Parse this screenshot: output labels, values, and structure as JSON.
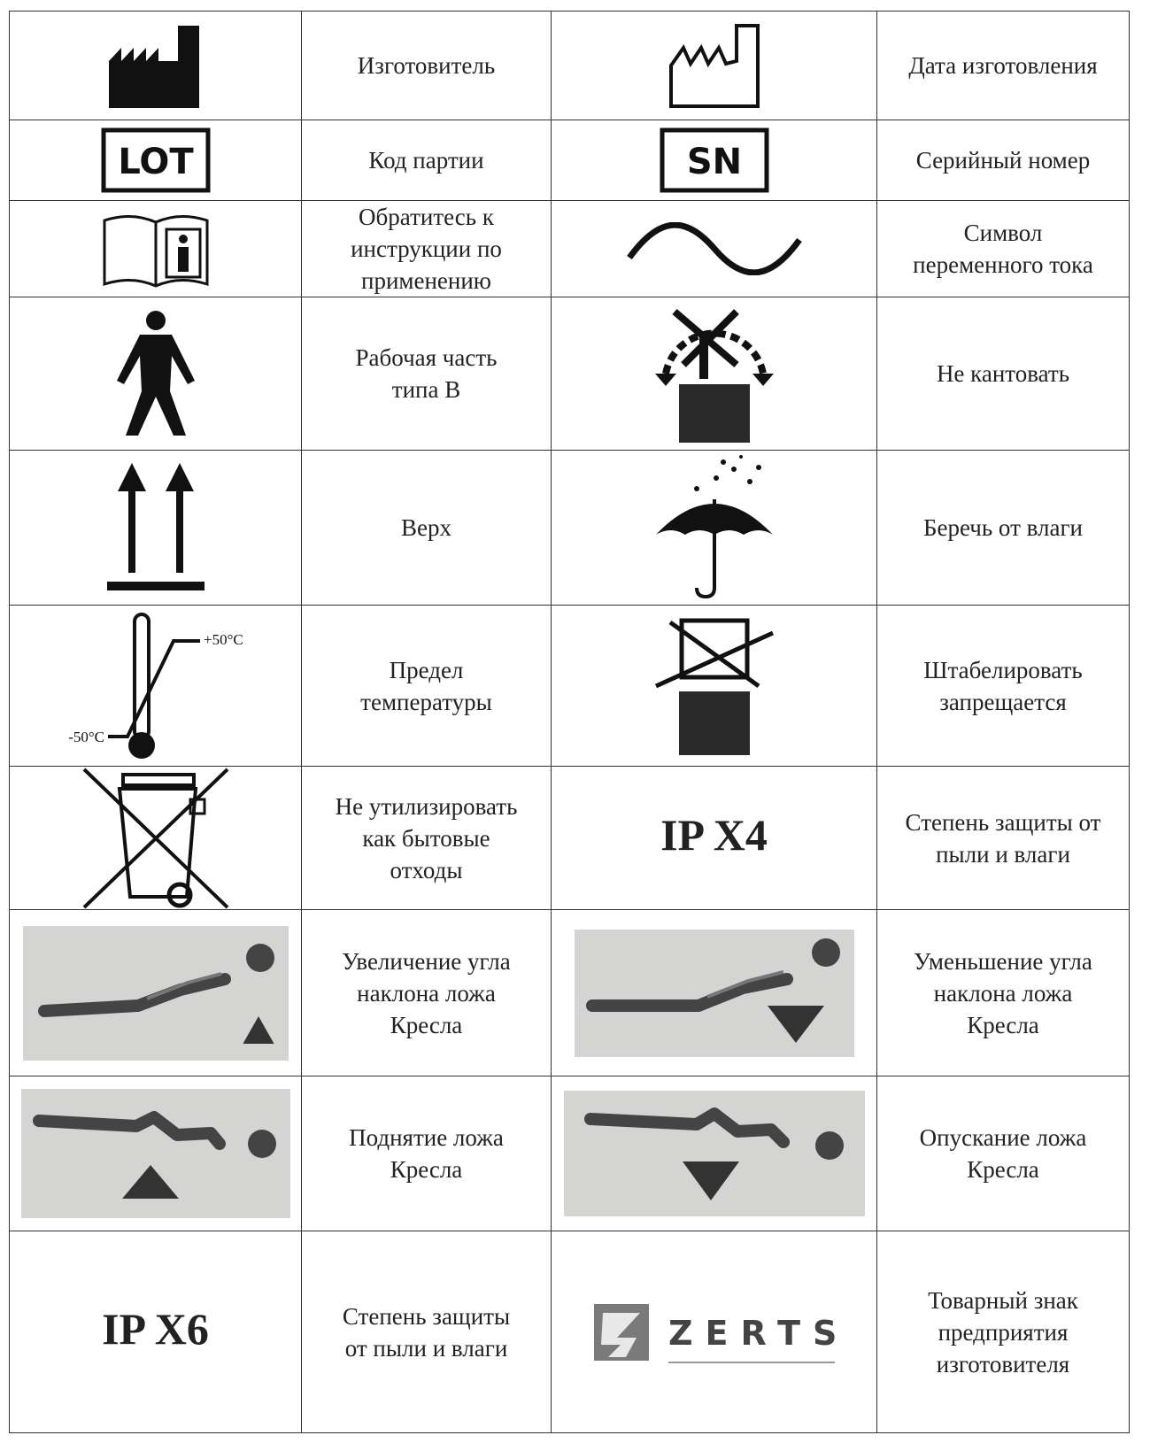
{
  "table": {
    "rows": [
      {
        "left": [
          "Изготовитель"
        ],
        "right": [
          "Дата изготовления"
        ]
      },
      {
        "left": [
          "Код партии"
        ],
        "right": [
          "Серийный номер"
        ]
      },
      {
        "left": [
          "Обратитесь к",
          "инструкции по",
          "применению"
        ],
        "right": [
          "Символ",
          "переменного тока"
        ]
      },
      {
        "left": [
          "Рабочая часть",
          "типа В"
        ],
        "right": [
          "Не кантовать"
        ]
      },
      {
        "left": [
          "Верх"
        ],
        "right": [
          "Беречь от влаги"
        ]
      },
      {
        "left": [
          "Предел",
          "температуры"
        ],
        "right": [
          "Штабелировать",
          "запрещается"
        ]
      },
      {
        "left": [
          "Не утилизировать",
          "как бытовые",
          "отходы"
        ],
        "right": [
          "Степень защиты от",
          "пыли и влаги"
        ]
      },
      {
        "left": [
          "Увеличение угла",
          "наклона ложа",
          "Кресла"
        ],
        "right": [
          "Уменьшение угла",
          "наклона ложа",
          "Кресла"
        ]
      },
      {
        "left": [
          "Поднятие ложа",
          "Кресла"
        ],
        "right": [
          "Опускание ложа",
          "Кресла"
        ]
      },
      {
        "left": [
          "Степень защиты",
          "от пыли и влаги"
        ],
        "right": [
          "Товарный знак",
          "предприятия",
          "изготовителя"
        ]
      }
    ]
  },
  "symbols": {
    "lot": "LOT",
    "sn": "SN",
    "temp_max": "+50°C",
    "temp_min": "-50°C",
    "ip_x4": "IP X4",
    "ip_x6": "IP X6",
    "brand": "ZERTS"
  }
}
